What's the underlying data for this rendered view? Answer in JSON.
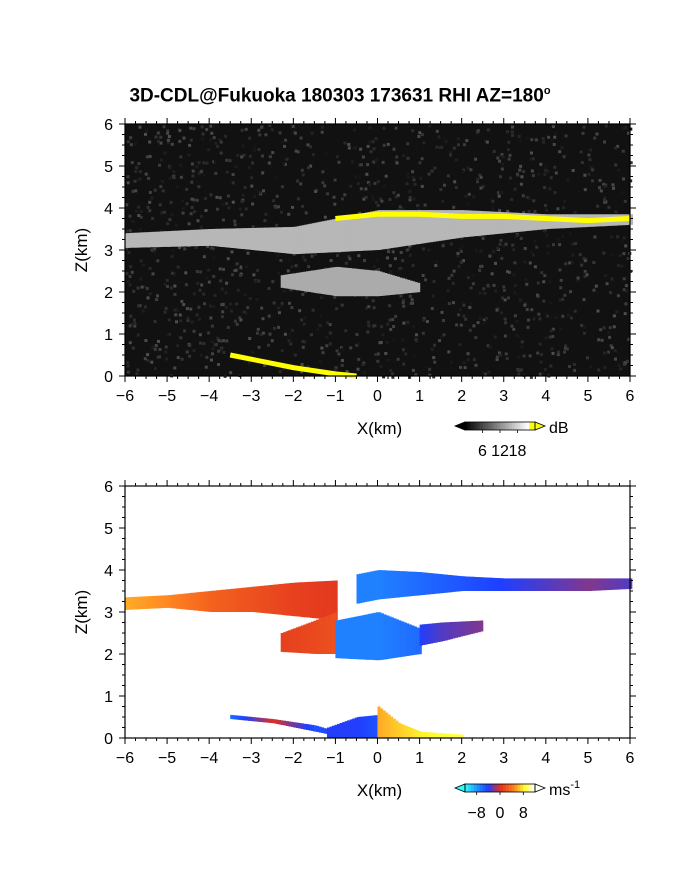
{
  "title": "3D-CDL@Fukuoka 180303 173631 RHI AZ=180",
  "title_degree_mark": "o",
  "colors": {
    "background": "#ffffff",
    "reflectivity_bg": "#111111",
    "doppler_bg": "#ffffff",
    "highlight": "#ffff00",
    "gray_low": "#000000",
    "gray_high": "#ffffff",
    "vel_neg": "#1f3fff",
    "vel_zero": "#e0301e",
    "vel_pos": "#ffff30"
  },
  "chart_data": [
    {
      "type": "heatmap",
      "name": "reflectivity",
      "xlabel": "X(km)",
      "ylabel": "Z(km)",
      "xlim": [
        -6,
        6
      ],
      "ylim": [
        0,
        6
      ],
      "xticks": [
        -6,
        -5,
        -4,
        -3,
        -2,
        -1,
        0,
        1,
        2,
        3,
        4,
        5,
        6
      ],
      "yticks": [
        0,
        1,
        2,
        3,
        4,
        5,
        6
      ],
      "colorbar": {
        "unit": "dB",
        "ticks": [
          6,
          12,
          18
        ],
        "range": [
          0,
          24
        ],
        "colormap": "grayscale-to-yellow"
      },
      "features": [
        {
          "kind": "cloud_layer",
          "x": [
            -6.0,
            -4.0,
            -2.0,
            0.0,
            2.0,
            4.0,
            6.0
          ],
          "z_bottom": [
            3.05,
            3.1,
            2.9,
            3.0,
            3.3,
            3.5,
            3.6
          ],
          "z_top": [
            3.4,
            3.5,
            3.55,
            3.95,
            3.95,
            3.85,
            3.85
          ],
          "intensity_db": 16
        },
        {
          "kind": "cloud_patch",
          "x": [
            -2.3,
            -1.0,
            0.0,
            1.0
          ],
          "z_bottom": [
            2.1,
            1.9,
            1.9,
            2.0
          ],
          "z_top": [
            2.4,
            2.6,
            2.5,
            2.2
          ],
          "intensity_db": 14
        },
        {
          "kind": "highlight_line",
          "x": [
            -1.0,
            0.0,
            1.0,
            2.0,
            3.0,
            4.0,
            5.0,
            6.0
          ],
          "z": [
            3.75,
            3.85,
            3.85,
            3.8,
            3.8,
            3.75,
            3.7,
            3.75
          ]
        },
        {
          "kind": "highlight_line",
          "x": [
            -3.5,
            -3.0,
            -2.0,
            -1.0,
            -0.5
          ],
          "z": [
            0.5,
            0.4,
            0.2,
            0.05,
            0.0
          ]
        }
      ]
    },
    {
      "type": "heatmap",
      "name": "doppler_velocity",
      "xlabel": "X(km)",
      "ylabel": "Z(km)",
      "xlim": [
        -6,
        6
      ],
      "ylim": [
        0,
        6
      ],
      "xticks": [
        -6,
        -5,
        -4,
        -3,
        -2,
        -1,
        0,
        1,
        2,
        3,
        4,
        5,
        6
      ],
      "yticks": [
        0,
        1,
        2,
        3,
        4,
        5,
        6
      ],
      "colorbar": {
        "unit": "ms",
        "unit_superscript": "-1",
        "ticks": [
          -8,
          0,
          8
        ],
        "tick_labels": [
          "−8",
          "0",
          "8"
        ],
        "range": [
          -12,
          12
        ],
        "colormap": "cyan-blue-red-yellow"
      },
      "features": [
        {
          "kind": "velocity_band",
          "x": [
            -6.0,
            -5.0,
            -4.0,
            -3.0,
            -2.0,
            -1.0
          ],
          "z_bottom": [
            3.05,
            3.1,
            3.0,
            3.0,
            2.9,
            2.8
          ],
          "z_top": [
            3.35,
            3.4,
            3.5,
            3.6,
            3.7,
            3.75
          ],
          "velocity": [
            6,
            5,
            3,
            2,
            1,
            0.5
          ]
        },
        {
          "kind": "velocity_band",
          "x": [
            -0.5,
            0.0,
            1.0,
            2.0,
            3.0,
            4.0,
            5.0,
            6.0
          ],
          "z_bottom": [
            3.2,
            3.3,
            3.4,
            3.5,
            3.5,
            3.5,
            3.5,
            3.55
          ],
          "z_top": [
            3.9,
            4.0,
            3.95,
            3.85,
            3.8,
            3.8,
            3.8,
            3.8
          ],
          "velocity": [
            -7,
            -7,
            -6,
            -5,
            -4,
            -3,
            -2,
            -3
          ]
        },
        {
          "kind": "velocity_band",
          "x": [
            -2.3,
            -1.5,
            -1.0
          ],
          "z_bottom": [
            2.05,
            2.0,
            2.0
          ],
          "z_top": [
            2.5,
            2.8,
            3.0
          ],
          "velocity": [
            1,
            1.5,
            2
          ]
        },
        {
          "kind": "velocity_band",
          "x": [
            -1.0,
            0.0,
            1.0
          ],
          "z_bottom": [
            1.9,
            1.85,
            2.0
          ],
          "z_top": [
            2.8,
            3.0,
            2.6
          ],
          "velocity": [
            -7,
            -7,
            -6
          ]
        },
        {
          "kind": "velocity_band",
          "x": [
            1.0,
            1.5,
            2.5
          ],
          "z_bottom": [
            2.2,
            2.3,
            2.55
          ],
          "z_top": [
            2.7,
            2.75,
            2.8
          ],
          "velocity": [
            -4,
            -3,
            -2
          ]
        },
        {
          "kind": "velocity_band",
          "x": [
            -3.5,
            -2.5,
            -1.5,
            -1.0
          ],
          "z_bottom": [
            0.45,
            0.35,
            0.15,
            0.05
          ],
          "z_top": [
            0.55,
            0.45,
            0.3,
            0.15
          ],
          "velocity": [
            -6,
            0,
            -5,
            -4
          ]
        },
        {
          "kind": "velocity_band",
          "x": [
            -1.2,
            -0.5,
            0.0
          ],
          "z_bottom": [
            0.0,
            0.0,
            0.0
          ],
          "z_top": [
            0.25,
            0.5,
            0.55
          ],
          "velocity": [
            -4,
            -4,
            -5
          ]
        },
        {
          "kind": "velocity_band",
          "x": [
            0.0,
            0.5,
            1.0,
            2.0
          ],
          "z_bottom": [
            0.0,
            0.0,
            0.0,
            0.0
          ],
          "z_top": [
            0.75,
            0.35,
            0.15,
            0.08
          ],
          "velocity": [
            6,
            7,
            8,
            9
          ]
        }
      ]
    }
  ]
}
